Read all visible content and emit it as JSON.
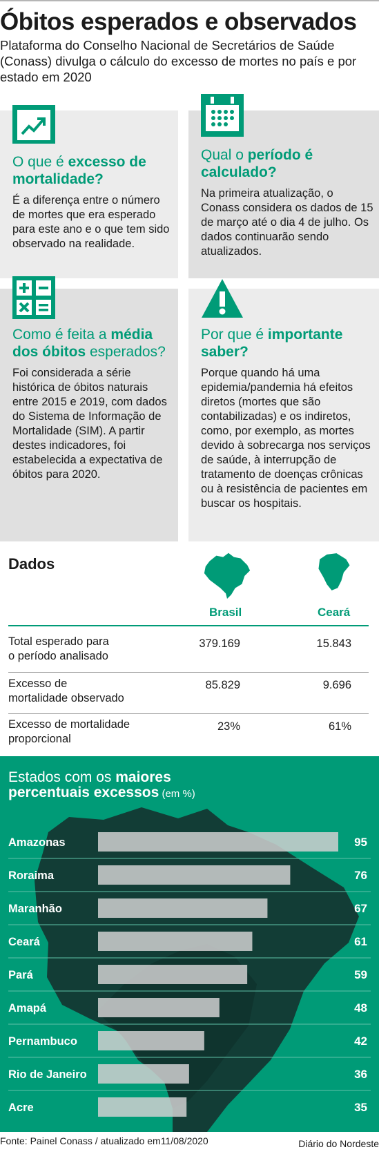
{
  "header": {
    "title": "Óbitos esperados e observados",
    "subtitle": "Plataforma do Conselho Nacional de Secretários de Saúde (Conass) divulga o cálculo do excesso de mortes no país e por estado em 2020"
  },
  "cards": [
    {
      "icon": "line-chart-icon",
      "title_pre": "O que é ",
      "title_bold": "excesso de mortalidade?",
      "title_post": "",
      "body": "É a diferença entre o número de mortes que era esperado para este ano e o que tem sido observado na realidade."
    },
    {
      "icon": "calendar-icon",
      "title_pre": "Qual o ",
      "title_bold": "período é calculado?",
      "title_post": "",
      "body": "Na primeira atualização, o Conass considera os dados de 15 de março até o dia 4 de julho. Os dados continuarão sendo atualizados."
    },
    {
      "icon": "calculator-icon",
      "title_pre": "Como é feita a ",
      "title_bold": "média dos óbitos",
      "title_post": " esperados?",
      "body": "Foi considerada a série histórica de óbitos naturais entre 2015 e 2019, com dados do Sistema de Informação de Mortalidade (SIM). A partir destes indicadores, foi estabelecida a expectativa de óbitos para 2020."
    },
    {
      "icon": "warning-icon",
      "title_pre": "Por que é ",
      "title_bold": "importante saber?",
      "title_post": "",
      "body": "Porque quando há uma epidemia/pandemia há efeitos diretos (mortes que são contabilizadas) e os indiretos, como, por exemplo, as mortes devido à sobrecarga nos serviços de saúde, à interrupção de tratamento de doenças crônicas ou à resistência de pacientes em buscar os hospitais."
    }
  ],
  "dados": {
    "title": "Dados",
    "columns": [
      "Brasil",
      "Ceará"
    ],
    "icons": [
      "brazil-map-icon",
      "ceara-map-icon"
    ],
    "rows": [
      {
        "label_1": "Total esperado para",
        "label_2": "o período analisado",
        "values": [
          "379.169",
          "15.843"
        ]
      },
      {
        "label_1": "Excesso de",
        "label_2": "mortalidade observado",
        "values": [
          "85.829",
          "9.696"
        ]
      },
      {
        "label_1": "Excesso de mortalidade",
        "label_2": "proporcional",
        "values": [
          "23%",
          "61%"
        ]
      }
    ]
  },
  "panel": {
    "title_pre": "Estados com os ",
    "title_bold_1": "maiores",
    "title_bold_2": "percentuais excessos",
    "title_unit": " (em %)",
    "background_color": "#009b77",
    "bar_color": "#d0d0d0"
  },
  "chart_data": {
    "type": "bar",
    "orientation": "horizontal",
    "categories": [
      "Amazonas",
      "Roraima",
      "Maranhão",
      "Ceará",
      "Pará",
      "Amapá",
      "Pernambuco",
      "Rio de Janeiro",
      "Acre"
    ],
    "values": [
      95,
      76,
      67,
      61,
      59,
      48,
      42,
      36,
      35
    ],
    "title": "Estados com os maiores percentuais excessos (em %)",
    "xlim": [
      0,
      95
    ]
  },
  "footer": {
    "source": "Fonte: Painel Conass / atualizado em11/08/2020",
    "brand": "Diário do Nordeste"
  }
}
